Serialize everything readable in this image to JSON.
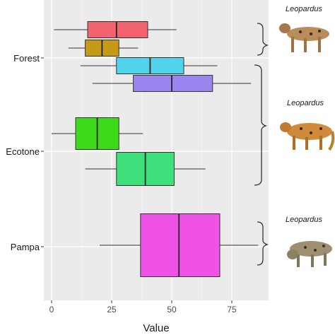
{
  "chart_data": {
    "type": "boxplot",
    "xlabel": "Value",
    "ylabel": "",
    "xlim": [
      -4,
      90
    ],
    "xticks": [
      0,
      25,
      50,
      75
    ],
    "x_tick_labels": [
      "0",
      "25",
      "50",
      "75"
    ],
    "grid": true,
    "groups": [
      {
        "label": "Forest",
        "boxes": [
          {
            "color": "#F2636F",
            "min": 1,
            "q1": 15,
            "median": 27,
            "q3": 40,
            "max": 52
          },
          {
            "color": "#C59A16",
            "min": 7,
            "q1": 14,
            "median": 21,
            "q3": 28,
            "max": 36
          },
          {
            "color": "#4FD4EC",
            "min": 12,
            "q1": 27,
            "median": 41,
            "q3": 55,
            "max": 69
          },
          {
            "color": "#9A84EE",
            "min": 17,
            "q1": 34,
            "median": 50,
            "q3": 67,
            "max": 83
          }
        ]
      },
      {
        "label": "Ecotone",
        "boxes": [
          {
            "color": "#3FD91B",
            "min": 0,
            "q1": 10,
            "median": 19,
            "q3": 28,
            "max": 38
          },
          {
            "color": "#3FE07C",
            "min": 14,
            "q1": 27,
            "median": 39,
            "q3": 51,
            "max": 64
          }
        ]
      },
      {
        "label": "Pampa",
        "boxes": [
          {
            "color": "#F052E6",
            "min": 20,
            "q1": 37,
            "median": 53,
            "q3": 70,
            "max": 86
          }
        ]
      }
    ],
    "species_labels": [
      "Leopardus",
      "Leopardus",
      "Leopardus"
    ]
  }
}
